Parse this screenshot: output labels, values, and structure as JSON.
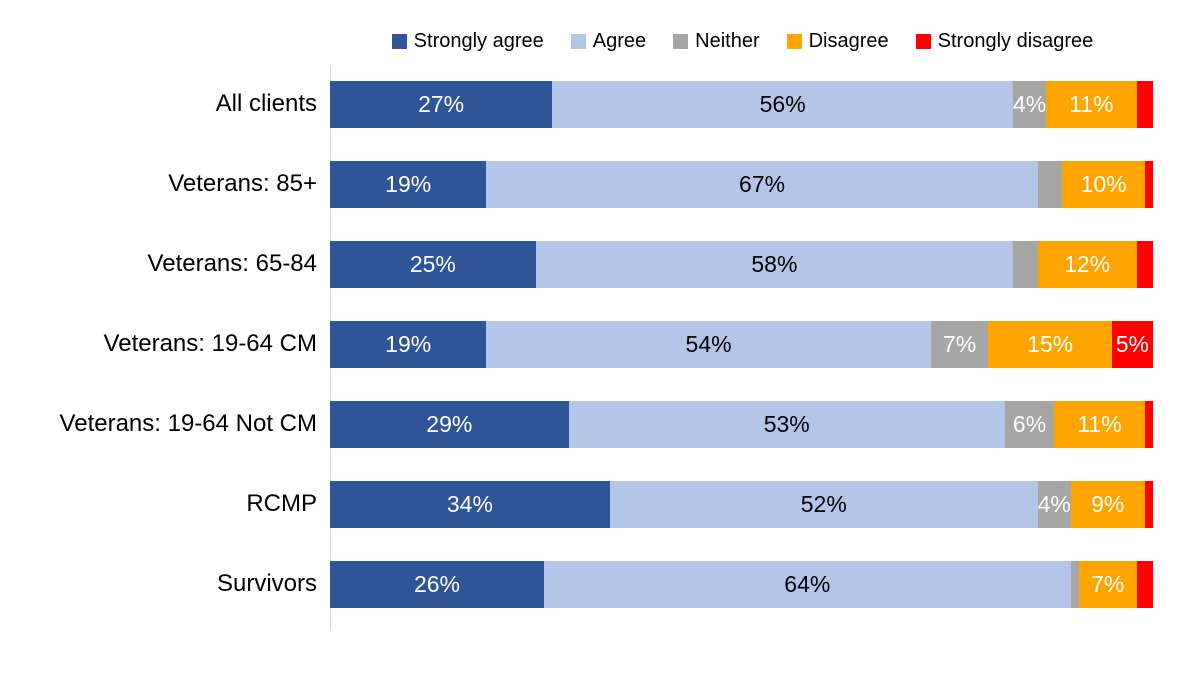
{
  "chart_data": {
    "type": "bar",
    "orientation": "horizontal",
    "stacked": true,
    "unit": "percent",
    "title": "",
    "xlabel": "",
    "ylabel": "",
    "xlim": [
      0,
      100
    ],
    "grid": false,
    "legend_position": "top",
    "axis_line_color": "#d6d6d6",
    "categories": [
      "All clients",
      "Veterans: 85+",
      "Veterans: 65-84",
      "Veterans: 19-64 CM",
      "Veterans: 19-64 Not CM",
      "RCMP",
      "Survivors"
    ],
    "series": [
      {
        "name": "Strongly agree",
        "color": "#2F5597",
        "label_color": "#FFFFFF",
        "values": [
          27,
          19,
          25,
          19,
          29,
          34,
          26
        ]
      },
      {
        "name": "Agree",
        "color": "#B4C6E7",
        "label_color": "#000000",
        "values": [
          56,
          67,
          58,
          54,
          53,
          52,
          64
        ]
      },
      {
        "name": "Neither",
        "color": "#A6A6A6",
        "label_color": "#FFFFFF",
        "values": [
          4,
          3,
          3,
          7,
          6,
          4,
          1
        ]
      },
      {
        "name": "Disagree",
        "color": "#FFA500",
        "label_color": "#FFFFFF",
        "values": [
          11,
          10,
          12,
          15,
          11,
          9,
          7
        ]
      },
      {
        "name": "Strongly disagree",
        "color": "#FF0000",
        "label_color": "#FFFFFF",
        "values": [
          2,
          1,
          2,
          5,
          1,
          1,
          2
        ]
      }
    ],
    "data_labels": {
      "format": "{v}%",
      "min_labeled_value": 4
    }
  },
  "legend": {
    "items": [
      {
        "label": "Strongly agree",
        "color": "#2F5597"
      },
      {
        "label": "Agree",
        "color": "#B4C6E7"
      },
      {
        "label": "Neither",
        "color": "#A6A6A6"
      },
      {
        "label": "Disagree",
        "color": "#FFA500"
      },
      {
        "label": "Strongly disagree",
        "color": "#FF0000"
      }
    ]
  }
}
